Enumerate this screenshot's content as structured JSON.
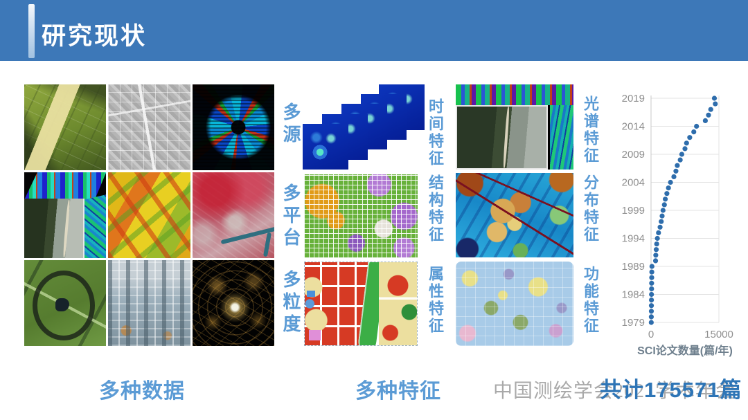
{
  "slide": {
    "title": "研究现状"
  },
  "labels": {
    "data_dims": [
      "多源",
      "多平台",
      "多粒度"
    ],
    "mid_features": [
      "时间特征",
      "结构特征",
      "属性特征"
    ],
    "right_features": [
      "光谱特征",
      "分布特征",
      "功能特征"
    ],
    "bottom_left": "多种数据",
    "bottom_mid": "多种特征",
    "total": "共计175571篇",
    "watermark": "中国测绘学会2021学术年会"
  },
  "colors": {
    "banner": "#3d78b8",
    "label_blue": "#5b9bd5",
    "total_blue": "#2e75b6",
    "watermark_gray": "#a0a0a0",
    "dot_blue": "#2e6dac"
  },
  "chart_data": {
    "type": "scatter",
    "title": "",
    "xlabel": "SCI论文数量(篇/年)",
    "ylabel": "",
    "xlim": [
      0,
      15000
    ],
    "xticks": [
      0,
      15000
    ],
    "yticks": [
      1979,
      1984,
      1989,
      1994,
      1999,
      2004,
      2009,
      2014,
      2019
    ],
    "years": [
      1979,
      1980,
      1981,
      1982,
      1983,
      1984,
      1985,
      1986,
      1987,
      1988,
      1989,
      1990,
      1991,
      1992,
      1993,
      1994,
      1995,
      1996,
      1997,
      1998,
      1999,
      2000,
      2001,
      2002,
      2003,
      2004,
      2005,
      2006,
      2007,
      2008,
      2009,
      2010,
      2011,
      2012,
      2013,
      2014,
      2015,
      2016,
      2017,
      2018,
      2019
    ],
    "values": [
      50,
      60,
      70,
      80,
      90,
      100,
      120,
      130,
      150,
      170,
      200,
      1000,
      1050,
      1150,
      1250,
      1400,
      1650,
      2000,
      2250,
      2450,
      2650,
      2950,
      3150,
      3500,
      3850,
      4300,
      5050,
      5500,
      5800,
      6450,
      6800,
      7500,
      7850,
      8550,
      9450,
      10050,
      12000,
      12700,
      13200,
      14200,
      14000
    ],
    "dot_color": "#2e6dac",
    "grid": true,
    "legend": false
  }
}
